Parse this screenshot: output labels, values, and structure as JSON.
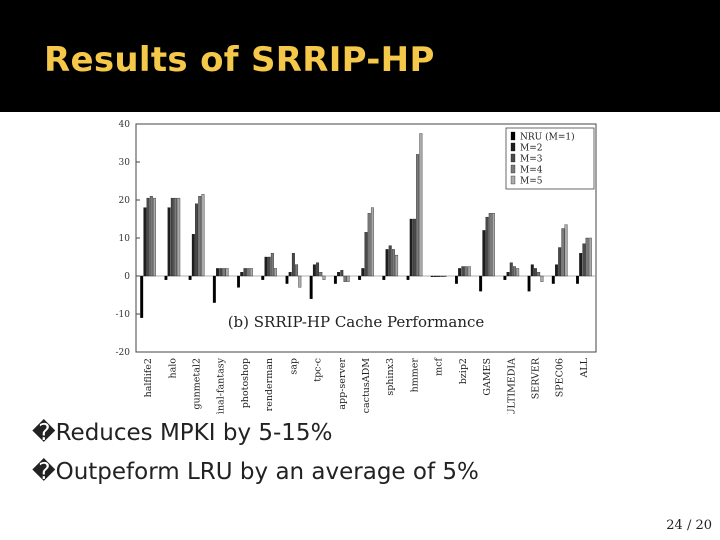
{
  "slide": {
    "title": "Results of SRRIP-HP",
    "bullets": [
      {
        "marker": "�",
        "text": "Reduces MPKI by 5-15%"
      },
      {
        "marker": "�",
        "text": "Outpeform LRU by an average of 5%"
      }
    ],
    "page_number": "24 / 20"
  },
  "chart_data": {
    "type": "bar",
    "title": "(b) SRRIP-HP Cache Performance",
    "ylim": [
      -20,
      40
    ],
    "yticks": [
      -20,
      -10,
      0,
      10,
      20,
      30,
      40
    ],
    "legend_placement": "top-right",
    "categories": [
      "halflife2",
      "halo",
      "gunmetal2",
      "final-fantasy",
      "photoshop",
      "renderman",
      "sap",
      "tpc-c",
      "app-server",
      "cactusADM",
      "sphinx3",
      "hmmer",
      "mcf",
      "bzip2",
      "GAMES",
      "MULTIMEDIA",
      "SERVER",
      "SPEC06",
      "ALL"
    ],
    "series": [
      {
        "name": "NRU (M=1)",
        "color": "#000000",
        "values": [
          -11,
          -1,
          -1,
          -7,
          -3,
          -1,
          -2,
          -6,
          -2,
          -1,
          -1,
          -1,
          0,
          -2,
          -4,
          -1,
          -4,
          -2,
          -2
        ]
      },
      {
        "name": "M=2",
        "color": "#1e1e1e",
        "values": [
          18,
          18,
          11,
          2,
          1,
          5,
          1,
          3,
          1,
          2,
          7,
          15,
          0,
          2,
          12,
          1,
          3,
          3,
          6
        ]
      },
      {
        "name": "M=3",
        "color": "#4a4a4a",
        "values": [
          20.5,
          20.5,
          19,
          2,
          2,
          5,
          6,
          3.5,
          1.5,
          11.5,
          8,
          15,
          0,
          2.5,
          15.5,
          3.5,
          2,
          7.5,
          8.5
        ]
      },
      {
        "name": "M=4",
        "color": "#7a7a7a",
        "values": [
          21,
          20.5,
          21,
          2,
          2,
          6,
          3,
          1,
          -1.5,
          16.5,
          7,
          32,
          0,
          2.5,
          16.5,
          2.5,
          1,
          12.5,
          10
        ]
      },
      {
        "name": "M=5",
        "color": "#aaaaaa",
        "values": [
          20.5,
          20.5,
          21.5,
          2,
          2,
          2,
          -3,
          -1,
          -1.5,
          18,
          5.5,
          37.5,
          0,
          2.5,
          16.5,
          2,
          -1.5,
          13.5,
          10
        ]
      }
    ]
  }
}
